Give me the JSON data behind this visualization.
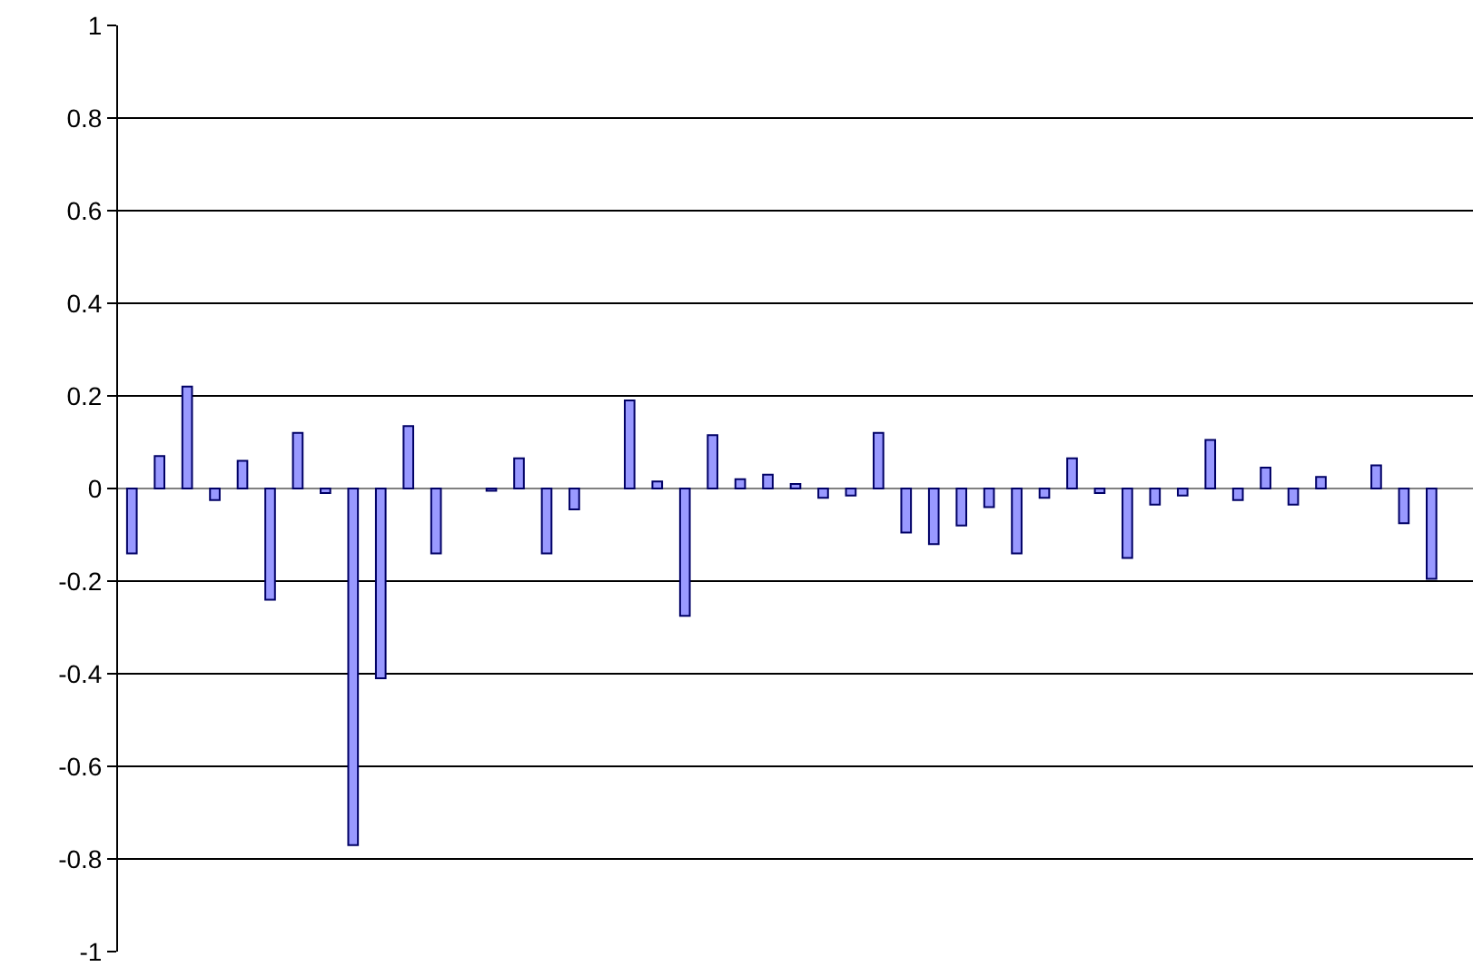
{
  "chart_data": {
    "type": "bar",
    "categories": [
      null,
      null,
      null,
      null,
      null,
      null,
      null,
      null,
      null,
      null,
      null,
      null,
      null,
      null,
      null,
      null,
      null,
      null,
      null,
      null,
      null,
      null,
      null,
      null,
      null,
      null,
      null,
      null,
      null,
      null,
      null,
      null,
      null,
      null,
      null,
      null,
      null,
      null,
      null,
      null,
      null,
      null,
      null,
      null,
      null,
      null,
      null,
      null,
      null
    ],
    "series": [
      {
        "color": "#9999ff",
        "values": [
          -0.14,
          0.07,
          0.22,
          -0.025,
          0.06,
          -0.24,
          0.12,
          -0.01,
          -0.77,
          -0.41,
          0.135,
          -0.14,
          null,
          -0.005,
          0.065,
          -0.14,
          -0.045,
          null,
          0.19,
          0.015,
          -0.275,
          0.115,
          0.02,
          0.03,
          0.01,
          -0.02,
          -0.015,
          0.12,
          -0.095,
          -0.12,
          -0.08,
          -0.04,
          -0.14,
          -0.02,
          0.065,
          -0.01,
          -0.15,
          -0.035,
          -0.015,
          0.105,
          -0.025,
          0.045,
          -0.035,
          0.025,
          null,
          0.05,
          -0.075,
          -0.195,
          null
        ]
      }
    ],
    "ylim": [
      -1,
      1
    ],
    "yticks": [
      -1,
      -0.8,
      -0.6,
      -0.4,
      -0.2,
      0,
      0.2,
      0.4,
      0.6,
      0.8,
      1
    ],
    "grid": "y",
    "tick_labels": "y"
  }
}
